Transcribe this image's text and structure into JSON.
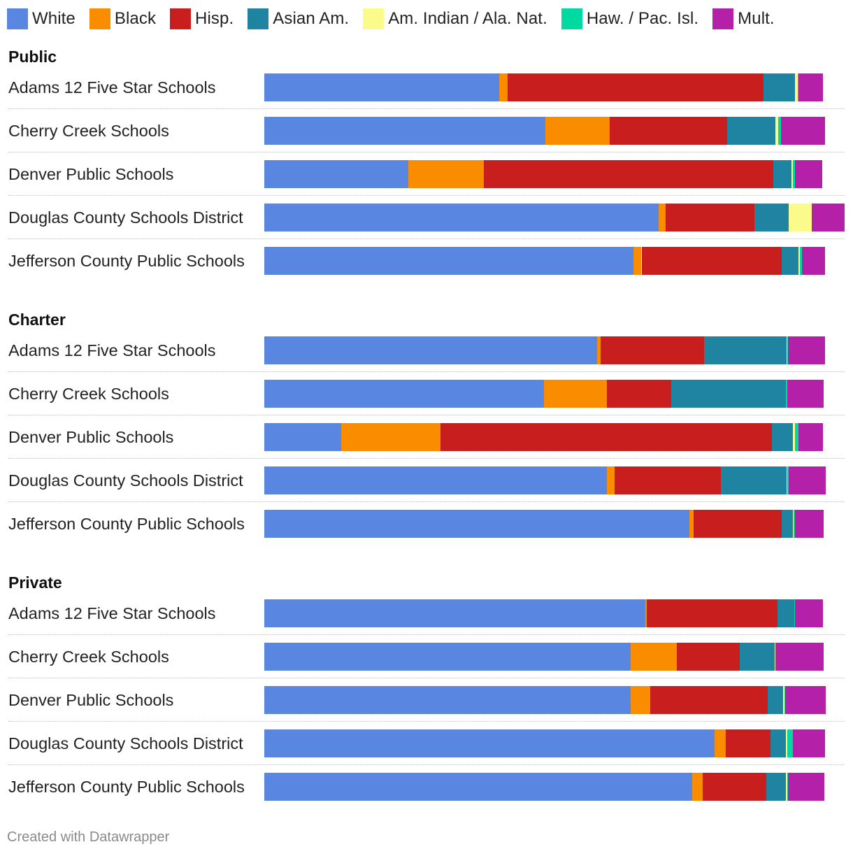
{
  "chart_data": {
    "type": "bar",
    "orientation": "horizontal",
    "stacked": true,
    "unit": "percent of enrollment",
    "categories_order": [
      "White",
      "Black",
      "Hisp.",
      "Asian Am.",
      "Am. Indian / Ala. Nat.",
      "Haw. / Pac. Isl.",
      "Mult."
    ],
    "series": [
      {
        "name": "White",
        "color": "#5886e0"
      },
      {
        "name": "Black",
        "color": "#fa8c00"
      },
      {
        "name": "Hisp.",
        "color": "#c81e1e"
      },
      {
        "name": "Asian Am.",
        "color": "#1f84a1"
      },
      {
        "name": "Am. Indian / Ala. Nat.",
        "color": "#fbfb8c"
      },
      {
        "name": "Haw. / Pac. Isl.",
        "color": "#00d9a0"
      },
      {
        "name": "Mult.",
        "color": "#b420a8"
      }
    ],
    "groups": [
      {
        "title": "Public",
        "rows": [
          {
            "label": "Adams 12 Five Star Schools",
            "values": [
              40.5,
              1.4,
              44.1,
              5.5,
              0.4,
              0.1,
              4.3
            ]
          },
          {
            "label": "Cherry Creek Schools",
            "values": [
              48.4,
              11.1,
              20.2,
              8.4,
              0.4,
              0.5,
              7.6
            ]
          },
          {
            "label": "Denver Public Schools",
            "values": [
              24.8,
              13.0,
              49.9,
              3.1,
              0.3,
              0.3,
              4.8
            ]
          },
          {
            "label": "Douglas County Schools District",
            "values": [
              68.0,
              1.2,
              15.2,
              6.0,
              3.9,
              0.0,
              5.7
            ]
          },
          {
            "label": "Jefferson County Public Schools",
            "values": [
              63.6,
              1.4,
              24.1,
              2.9,
              0.3,
              0.3,
              4.0
            ]
          }
        ]
      },
      {
        "title": "Charter",
        "rows": [
          {
            "label": "Adams 12 Five Star Schools",
            "values": [
              57.3,
              0.7,
              17.8,
              14.2,
              0.1,
              0.1,
              6.4
            ]
          },
          {
            "label": "Cherry Creek Schools",
            "values": [
              48.2,
              10.8,
              11.1,
              19.8,
              0.0,
              0.2,
              6.3
            ]
          },
          {
            "label": "Denver Public Schools",
            "values": [
              13.3,
              17.1,
              57.1,
              3.6,
              0.4,
              0.5,
              4.3
            ]
          },
          {
            "label": "Douglas County Schools District",
            "values": [
              59.0,
              1.4,
              18.3,
              11.3,
              0.1,
              0.3,
              6.3
            ]
          },
          {
            "label": "Jefferson County Public Schools",
            "values": [
              73.3,
              0.7,
              15.2,
              1.9,
              0.1,
              0.2,
              5.0
            ]
          }
        ]
      },
      {
        "title": "Private",
        "rows": [
          {
            "label": "Adams 12 Five Star Schools",
            "values": [
              65.7,
              0.2,
              22.5,
              2.9,
              0.0,
              0.1,
              4.9
            ]
          },
          {
            "label": "Cherry Creek Schools",
            "values": [
              63.1,
              8.0,
              10.8,
              6.0,
              0.2,
              0.0,
              8.3
            ]
          },
          {
            "label": "Denver Public Schools",
            "values": [
              63.1,
              3.4,
              20.2,
              2.7,
              0.2,
              0.1,
              7.0
            ]
          },
          {
            "label": "Douglas County Schools District",
            "values": [
              77.6,
              1.9,
              7.7,
              2.7,
              0.2,
              1.0,
              5.5
            ]
          },
          {
            "label": "Jefferson County Public Schools",
            "values": [
              73.7,
              1.9,
              10.9,
              3.4,
              0.2,
              0.2,
              6.2
            ]
          }
        ]
      }
    ],
    "legend_position": "top-left",
    "grid": false
  },
  "footer": {
    "credit": "Created with Datawrapper"
  }
}
